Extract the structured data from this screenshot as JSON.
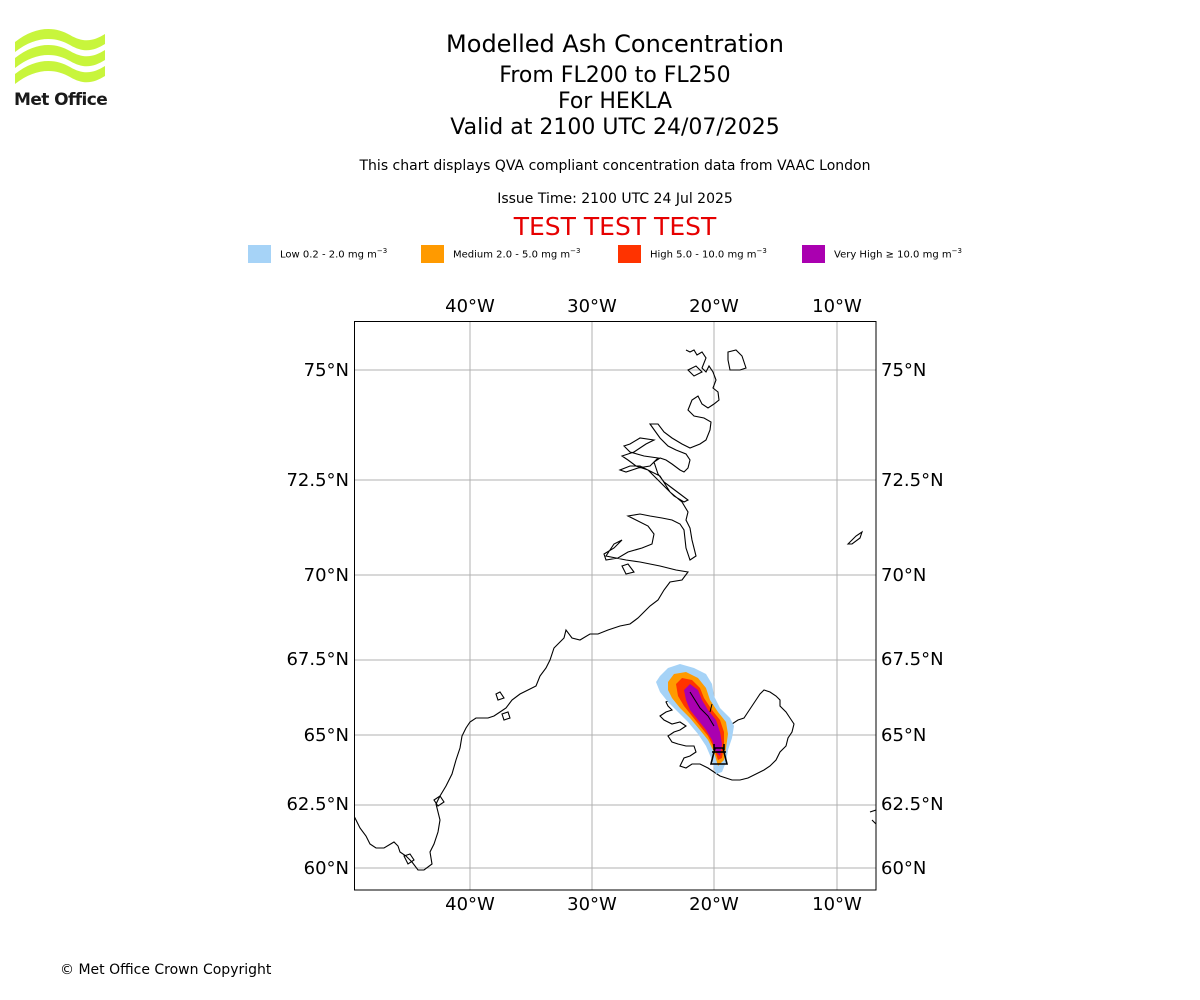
{
  "header": {
    "title": "Modelled Ash Concentration",
    "levels": "From FL200 to FL250",
    "volcano": "For HEKLA",
    "valid_time": "Valid at 2100 UTC 24/07/2025",
    "description": "This chart displays QVA compliant concentration data from VAAC London",
    "issue_time": "Issue Time: 2100 UTC 24 Jul 2025",
    "test_banner": "TEST TEST TEST"
  },
  "logo": {
    "text": "Met Office",
    "color": "#c8f53c"
  },
  "legend": [
    {
      "label": "Low 0.2 - 2.0 mg m",
      "unit_sup": "−3",
      "color": "#a6d3f7"
    },
    {
      "label": "Medium 2.0 - 5.0 mg m",
      "unit_sup": "−3",
      "color": "#ff9a00"
    },
    {
      "label": "High 5.0 - 10.0 mg m",
      "unit_sup": "−3",
      "color": "#ff3300"
    },
    {
      "label": "Very High  ≥  10.0 mg m",
      "unit_sup": "−3",
      "color": "#aa00b0"
    }
  ],
  "map": {
    "lon_ticks": [
      "40°W",
      "30°W",
      "20°W",
      "10°W"
    ],
    "lat_ticks": [
      "75°N",
      "72.5°N",
      "70°N",
      "67.5°N",
      "65°N",
      "62.5°N",
      "60°N"
    ],
    "volcano_marker": "hekla-volcano-icon"
  },
  "footer": {
    "copyright": "© Met Office Crown Copyright"
  }
}
